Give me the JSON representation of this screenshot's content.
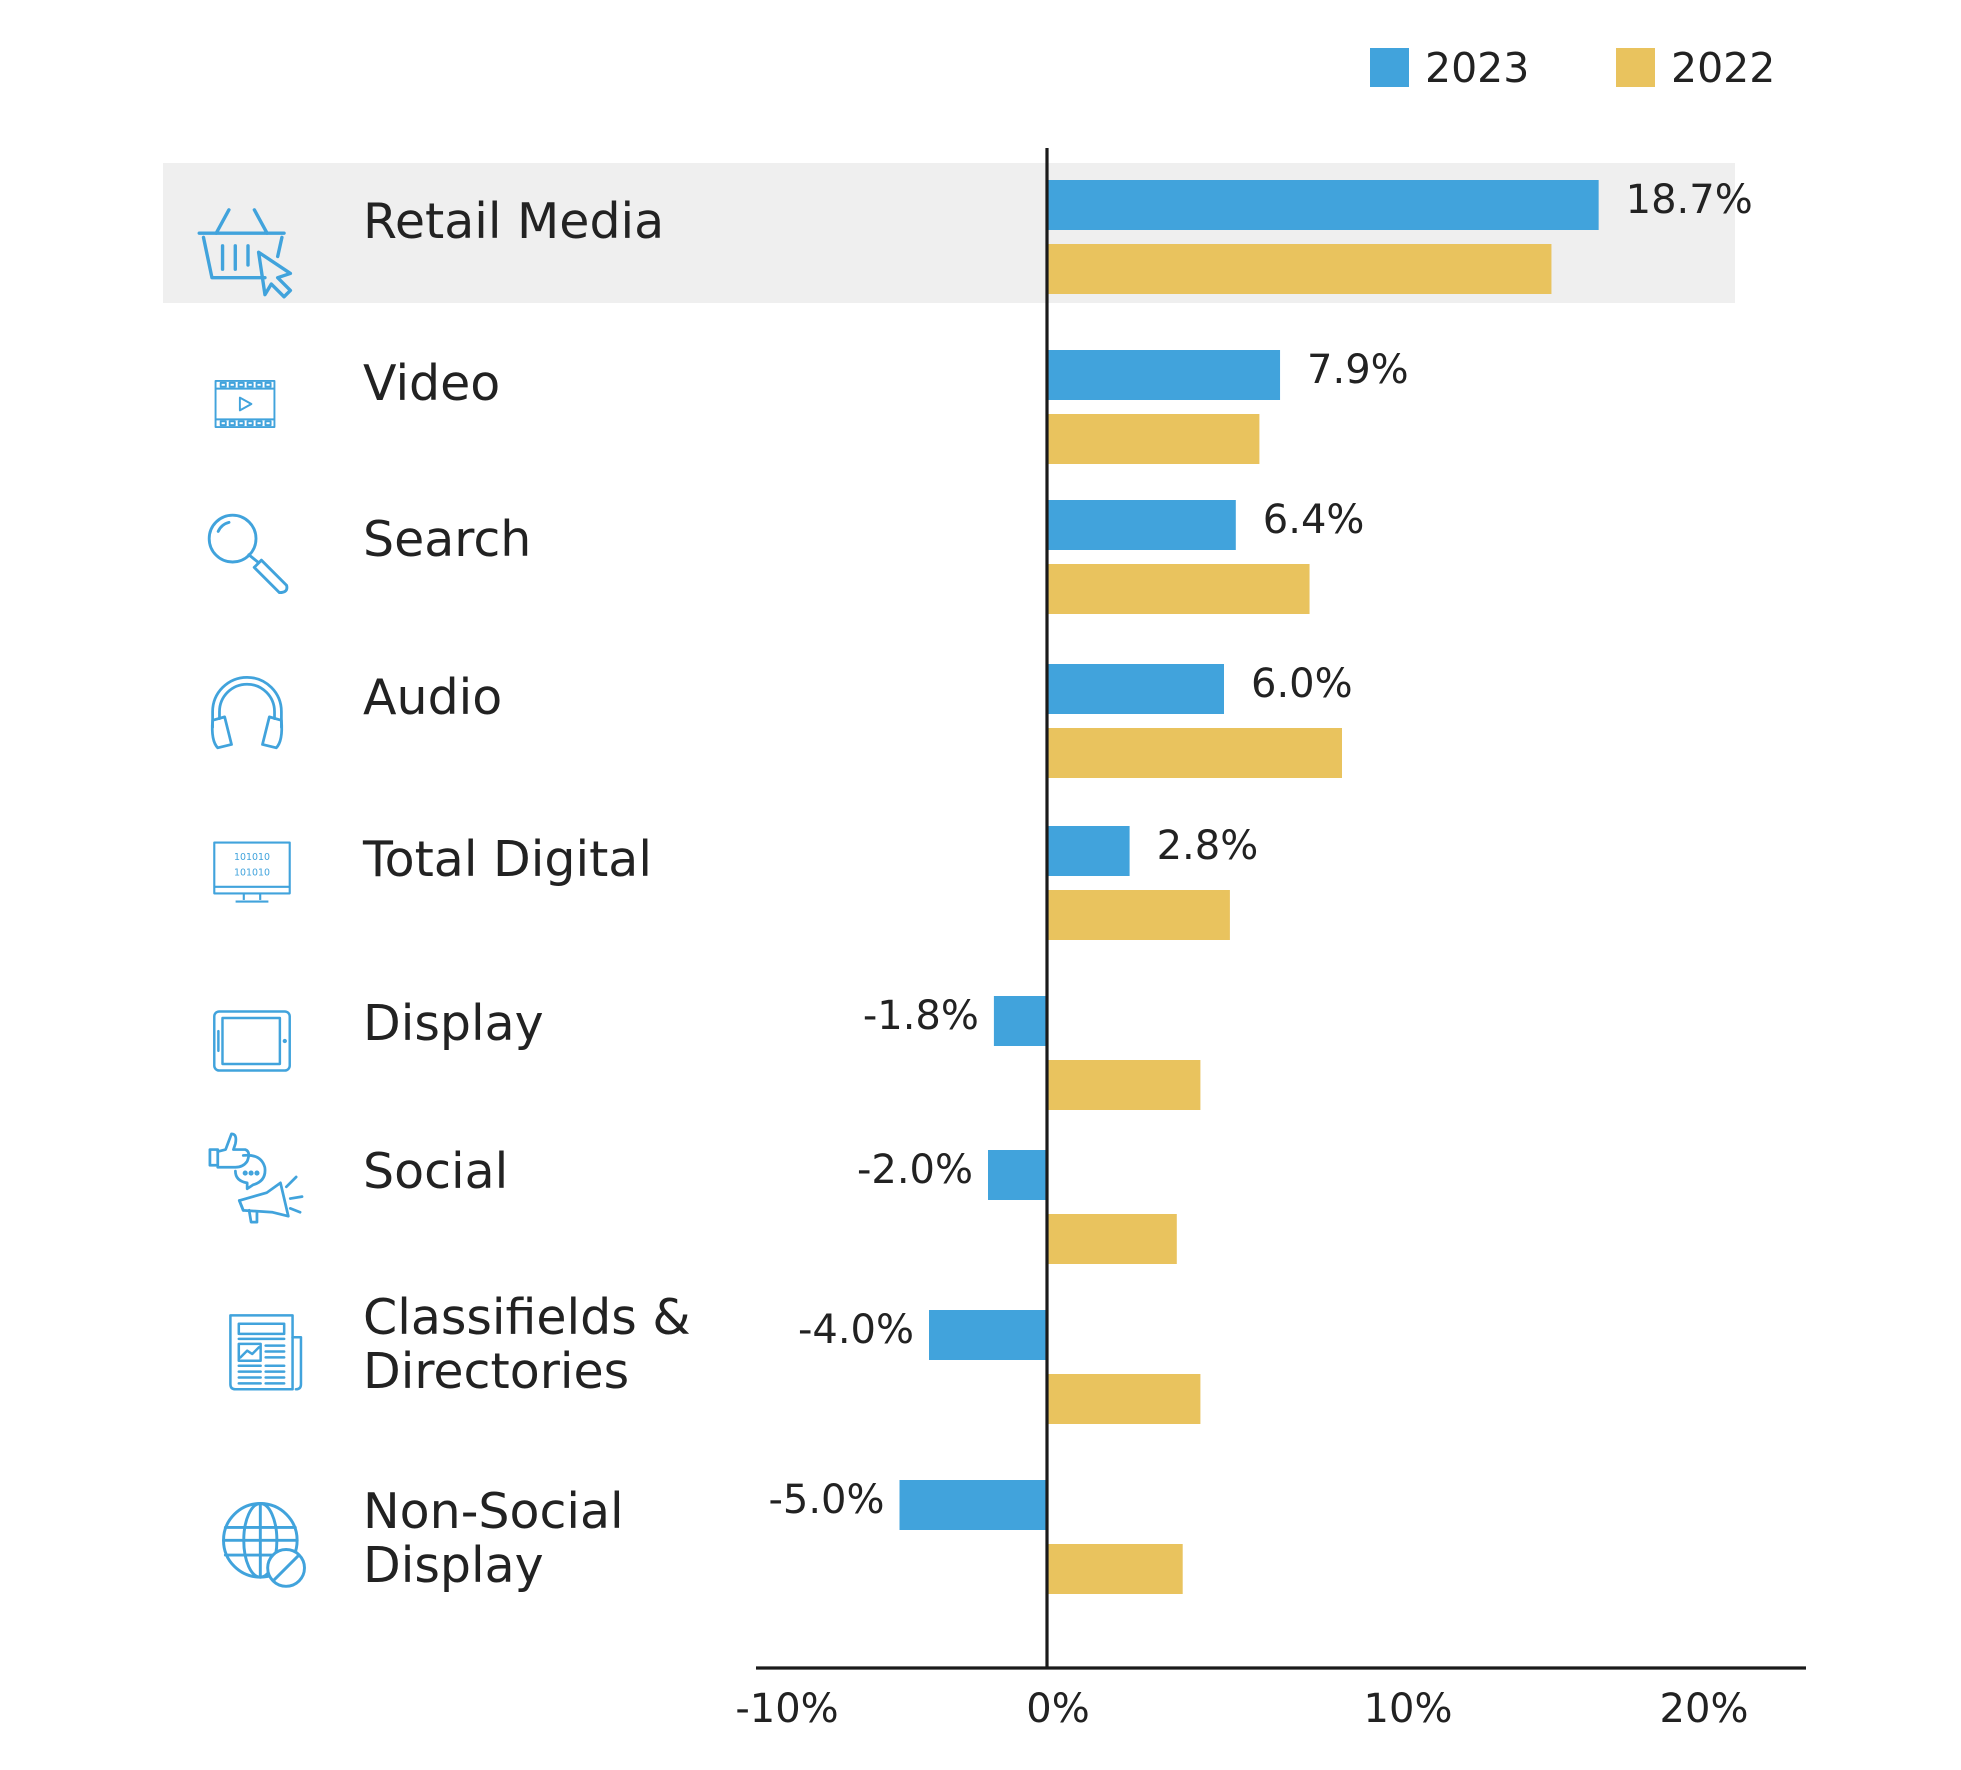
{
  "chart_data": {
    "type": "bar",
    "orientation": "horizontal",
    "title": "",
    "xlabel": "",
    "ylabel": "",
    "categories": [
      "Retail Media",
      "Video",
      "Search",
      "Audio",
      "Total Digital",
      "Display",
      "Social",
      "Classifields & Directories",
      "Non-Social Display"
    ],
    "category_lines": [
      [
        "Retail Media"
      ],
      [
        "Video"
      ],
      [
        "Search"
      ],
      [
        "Audio"
      ],
      [
        "Total Digital"
      ],
      [
        "Display"
      ],
      [
        "Social"
      ],
      [
        "Classifields &",
        "Directories"
      ],
      [
        "Non-Social",
        "Display"
      ]
    ],
    "icons": [
      "basket-cursor-icon",
      "video-film-icon",
      "magnifier-icon",
      "headphones-icon",
      "binary-monitor-icon",
      "tablet-icon",
      "social-megaphone-icon",
      "newspaper-icon",
      "globe-blocked-icon"
    ],
    "series": [
      {
        "name": "2023",
        "color": "#41A3DC",
        "values": [
          18.7,
          7.9,
          6.4,
          6.0,
          2.8,
          -1.8,
          -2.0,
          -4.0,
          -5.0
        ],
        "labels": [
          "18.7%",
          "7.9%",
          "6.4%",
          "6.0%",
          "2.8%",
          "-1.8%",
          "-2.0%",
          "-4.0%",
          "-5.0%"
        ]
      },
      {
        "name": "2022",
        "color": "#E9C35E",
        "values": [
          17.1,
          7.2,
          8.9,
          10.0,
          6.2,
          5.2,
          4.4,
          5.2,
          4.6
        ]
      }
    ],
    "xlim": [
      -10,
      25
    ],
    "xticks": [
      -10,
      0,
      10,
      20
    ],
    "xtick_labels": [
      "-10%",
      "0%",
      "10%",
      "20%"
    ],
    "highlight_category": "Retail Media",
    "highlight_color": "#EFEFEF",
    "legend_position": "top-right",
    "grid": false
  }
}
